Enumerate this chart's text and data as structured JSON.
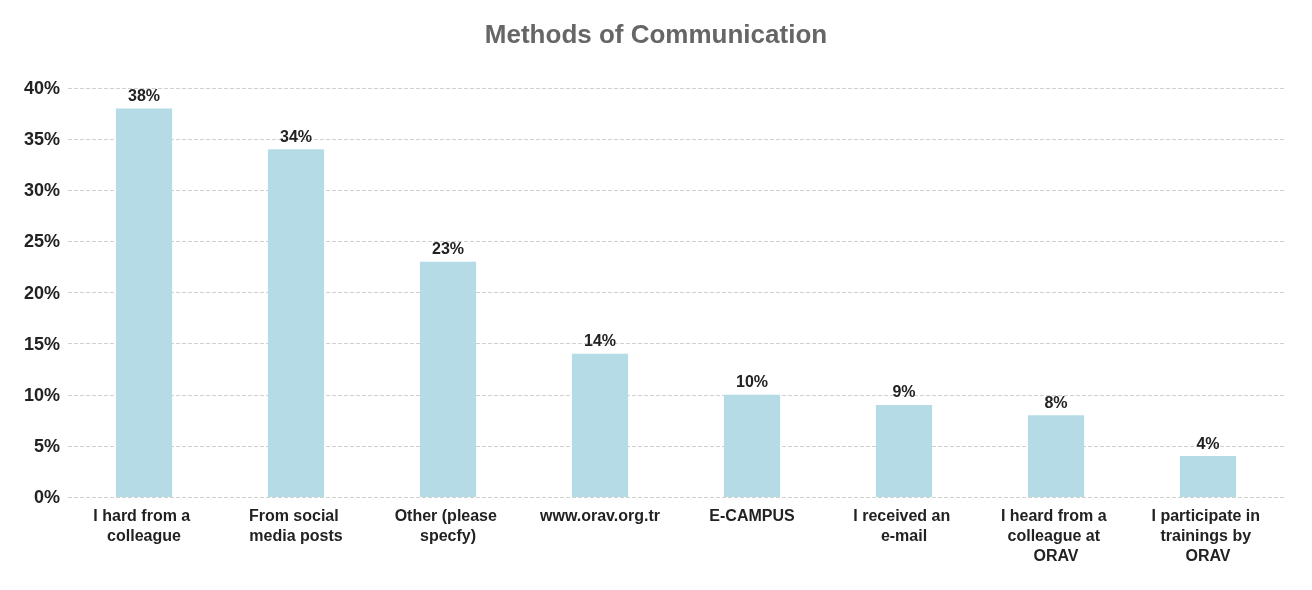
{
  "chart_data": {
    "type": "bar",
    "title": "Methods of Communication",
    "categories": [
      "I hard from a colleague",
      "From social media posts",
      "Other (please specfy)",
      "www.orav.org.tr",
      "E-CAMPUS",
      "I received an e-mail",
      "I heard from a colleague at ORAV",
      "I participate in trainings by ORAV"
    ],
    "values": [
      38,
      34,
      23,
      14,
      10,
      9,
      8,
      4
    ],
    "value_labels": [
      "38%",
      "34%",
      "23%",
      "14%",
      "10%",
      "9%",
      "8%",
      "4%"
    ],
    "color": "#b5dce6",
    "ylim": [
      0,
      40
    ],
    "yticks": [
      {
        "value": 0,
        "label": "0%"
      },
      {
        "value": 5,
        "label": "5%"
      },
      {
        "value": 10,
        "label": "10%"
      },
      {
        "value": 15,
        "label": "15%"
      },
      {
        "value": 20,
        "label": "20%"
      },
      {
        "value": 25,
        "label": "25%"
      },
      {
        "value": 30,
        "label": "30%"
      },
      {
        "value": 35,
        "label": "35%"
      },
      {
        "value": 40,
        "label": "40%"
      }
    ],
    "grid": "y"
  }
}
